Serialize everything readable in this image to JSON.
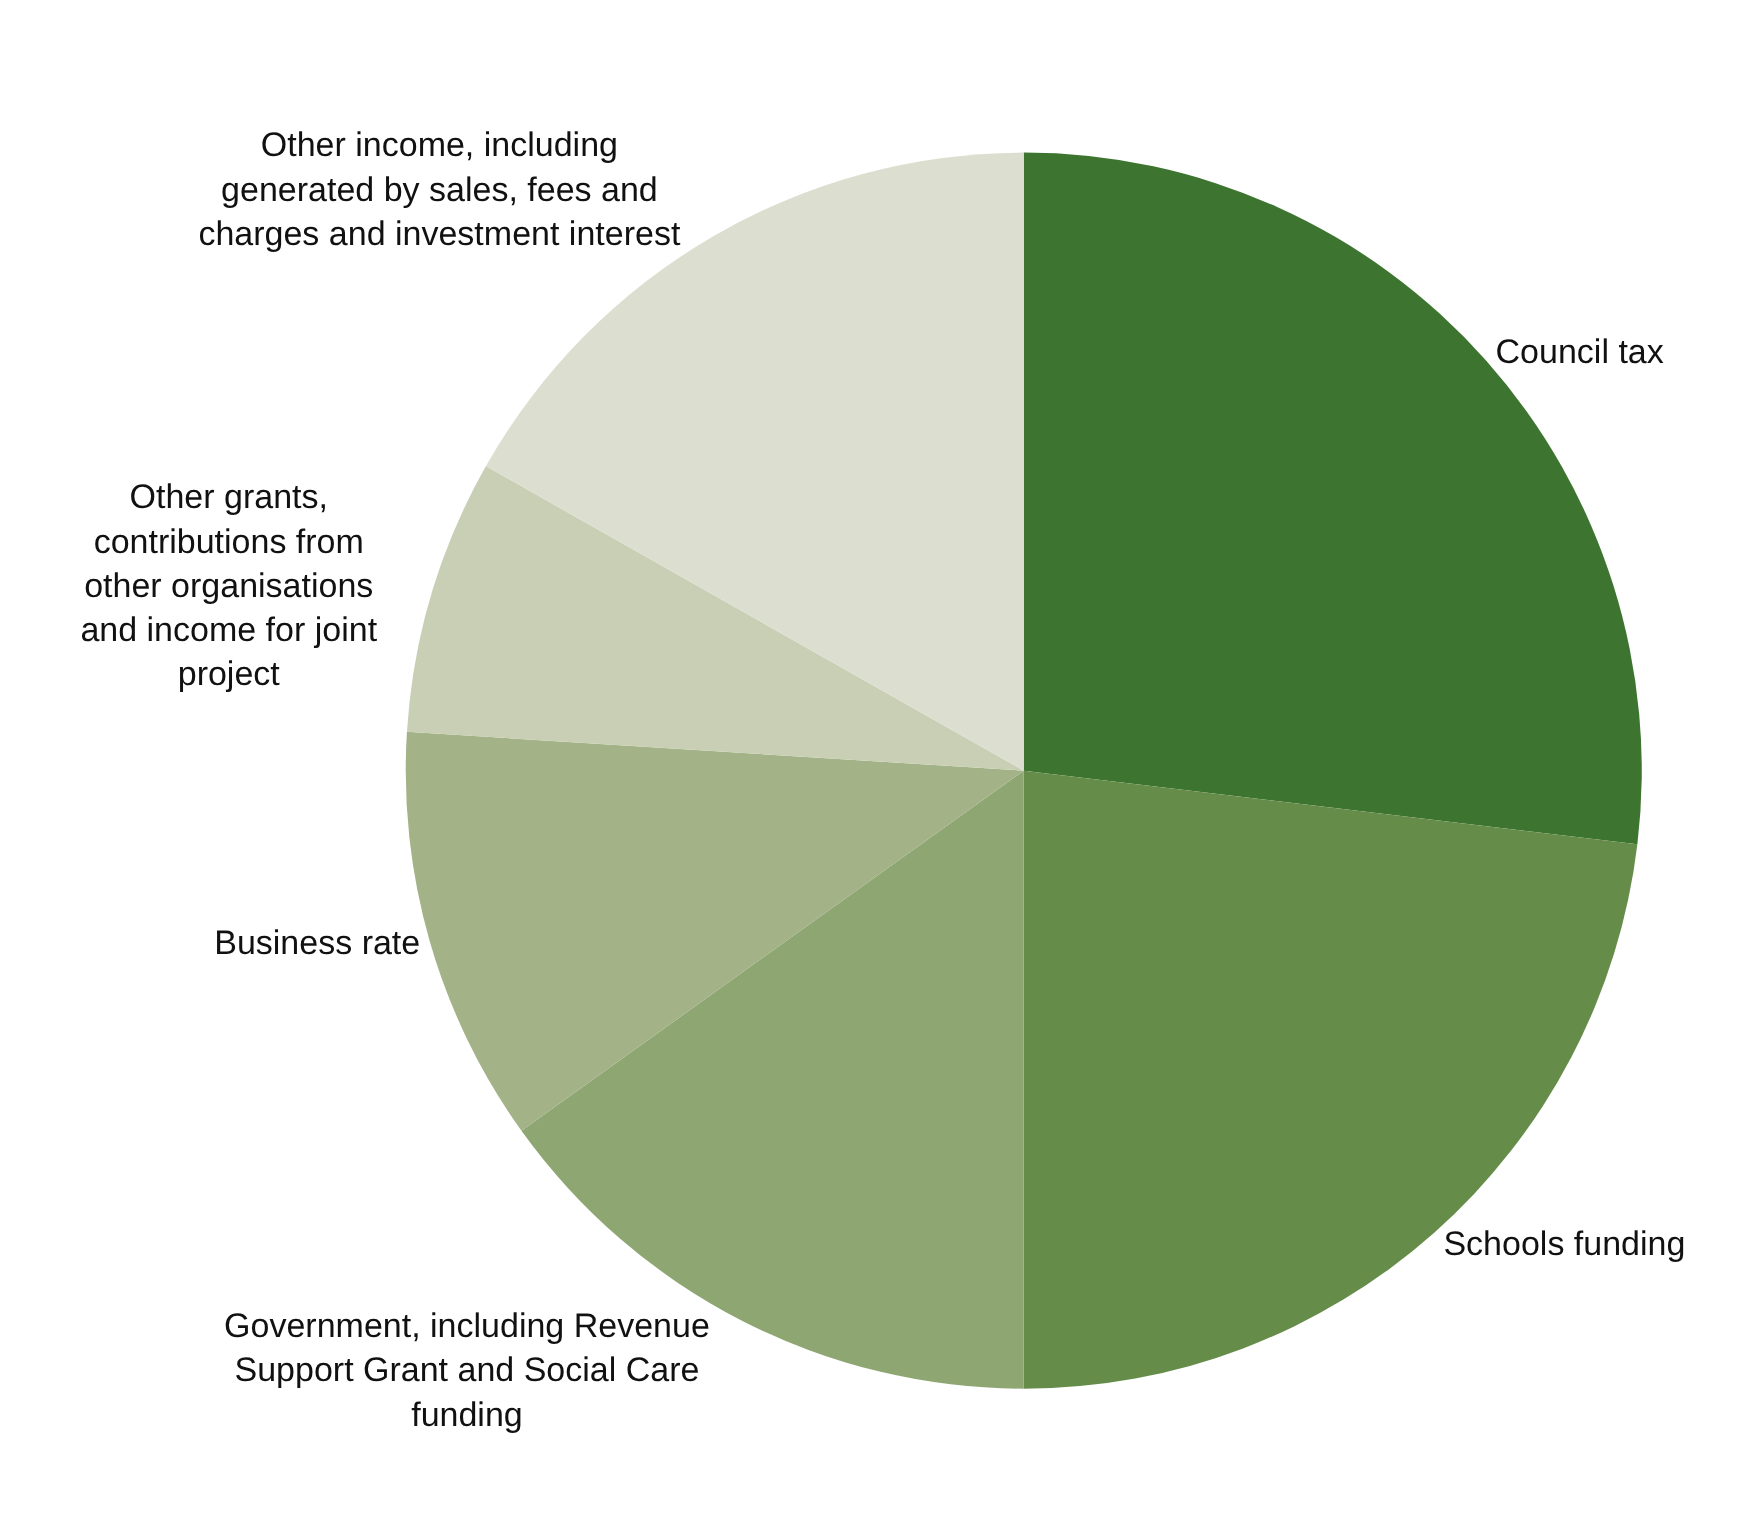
{
  "chart_data": {
    "type": "pie",
    "categories": [
      "Council tax",
      "Schools funding",
      "Government, including Revenue Support Grant and Social Care funding",
      "Business rate",
      "Other grants, contributions from other organisations and income for joint project",
      "Other income, including generated by sales, fees and charges and investment interest"
    ],
    "values": [
      26.9,
      23.1,
      15.1,
      10.9,
      7.2,
      16.8
    ],
    "colors": [
      "#3d7530",
      "#668c4a",
      "#8ea672",
      "#a3b287",
      "#c8cfb5",
      "#dcdfd0"
    ],
    "legend": false
  }
}
